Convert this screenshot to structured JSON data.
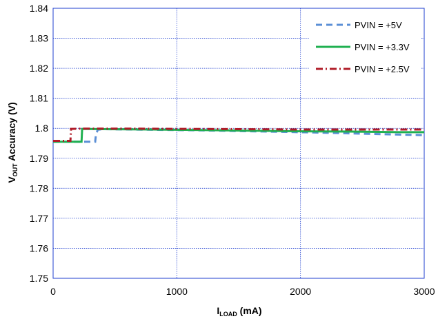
{
  "chart_data": {
    "type": "line",
    "xlabel": "I",
    "xlabel_sub": "LOAD",
    "xlabel_unit": " (mA)",
    "ylabel": "V",
    "ylabel_sub": "OUT",
    "ylabel_rest": " Accuracy (V)",
    "xlim": [
      0,
      3000
    ],
    "ylim": [
      1.75,
      1.84
    ],
    "xticks": [
      0,
      1000,
      2000,
      3000
    ],
    "xtick_labels": [
      "0",
      "1000",
      "2000",
      "3000"
    ],
    "yticks": [
      1.75,
      1.76,
      1.77,
      1.78,
      1.79,
      1.8,
      1.81,
      1.82,
      1.83,
      1.84
    ],
    "ytick_labels": [
      "1.75",
      "1.76",
      "1.77",
      "1.78",
      "1.79",
      "1.8",
      "1.81",
      "1.82",
      "1.83",
      "1.84"
    ],
    "grid": true,
    "legend_position": "top-right",
    "series": [
      {
        "name": "PVIN = +5V",
        "color": "#5b8fd6",
        "dash": "dashed",
        "x": [
          0,
          200,
          340,
          345,
          360,
          400,
          800,
          1200,
          1600,
          2000,
          2400,
          2800,
          3000
        ],
        "y": [
          1.7955,
          1.7955,
          1.7955,
          1.7975,
          1.7995,
          1.7997,
          1.7995,
          1.7993,
          1.799,
          1.7987,
          1.7983,
          1.7979,
          1.7977
        ]
      },
      {
        "name": "PVIN = +3.3V",
        "color": "#1fb050",
        "dash": "solid",
        "x": [
          0,
          230,
          235,
          400,
          800,
          1200,
          1600,
          2000,
          2400,
          2800,
          3000
        ],
        "y": [
          1.7955,
          1.7955,
          1.7998,
          1.7997,
          1.7996,
          1.7994,
          1.7992,
          1.799,
          1.7989,
          1.7987,
          1.7987
        ]
      },
      {
        "name": "PVIN = +2.5V",
        "color": "#b01c28",
        "dash": "dashdot",
        "x": [
          0,
          140,
          145,
          250,
          600,
          1000,
          1500,
          2000,
          2500,
          3000
        ],
        "y": [
          1.7958,
          1.7958,
          1.7998,
          1.7999,
          1.7999,
          1.7998,
          1.7997,
          1.7996,
          1.7996,
          1.7996
        ]
      }
    ]
  }
}
